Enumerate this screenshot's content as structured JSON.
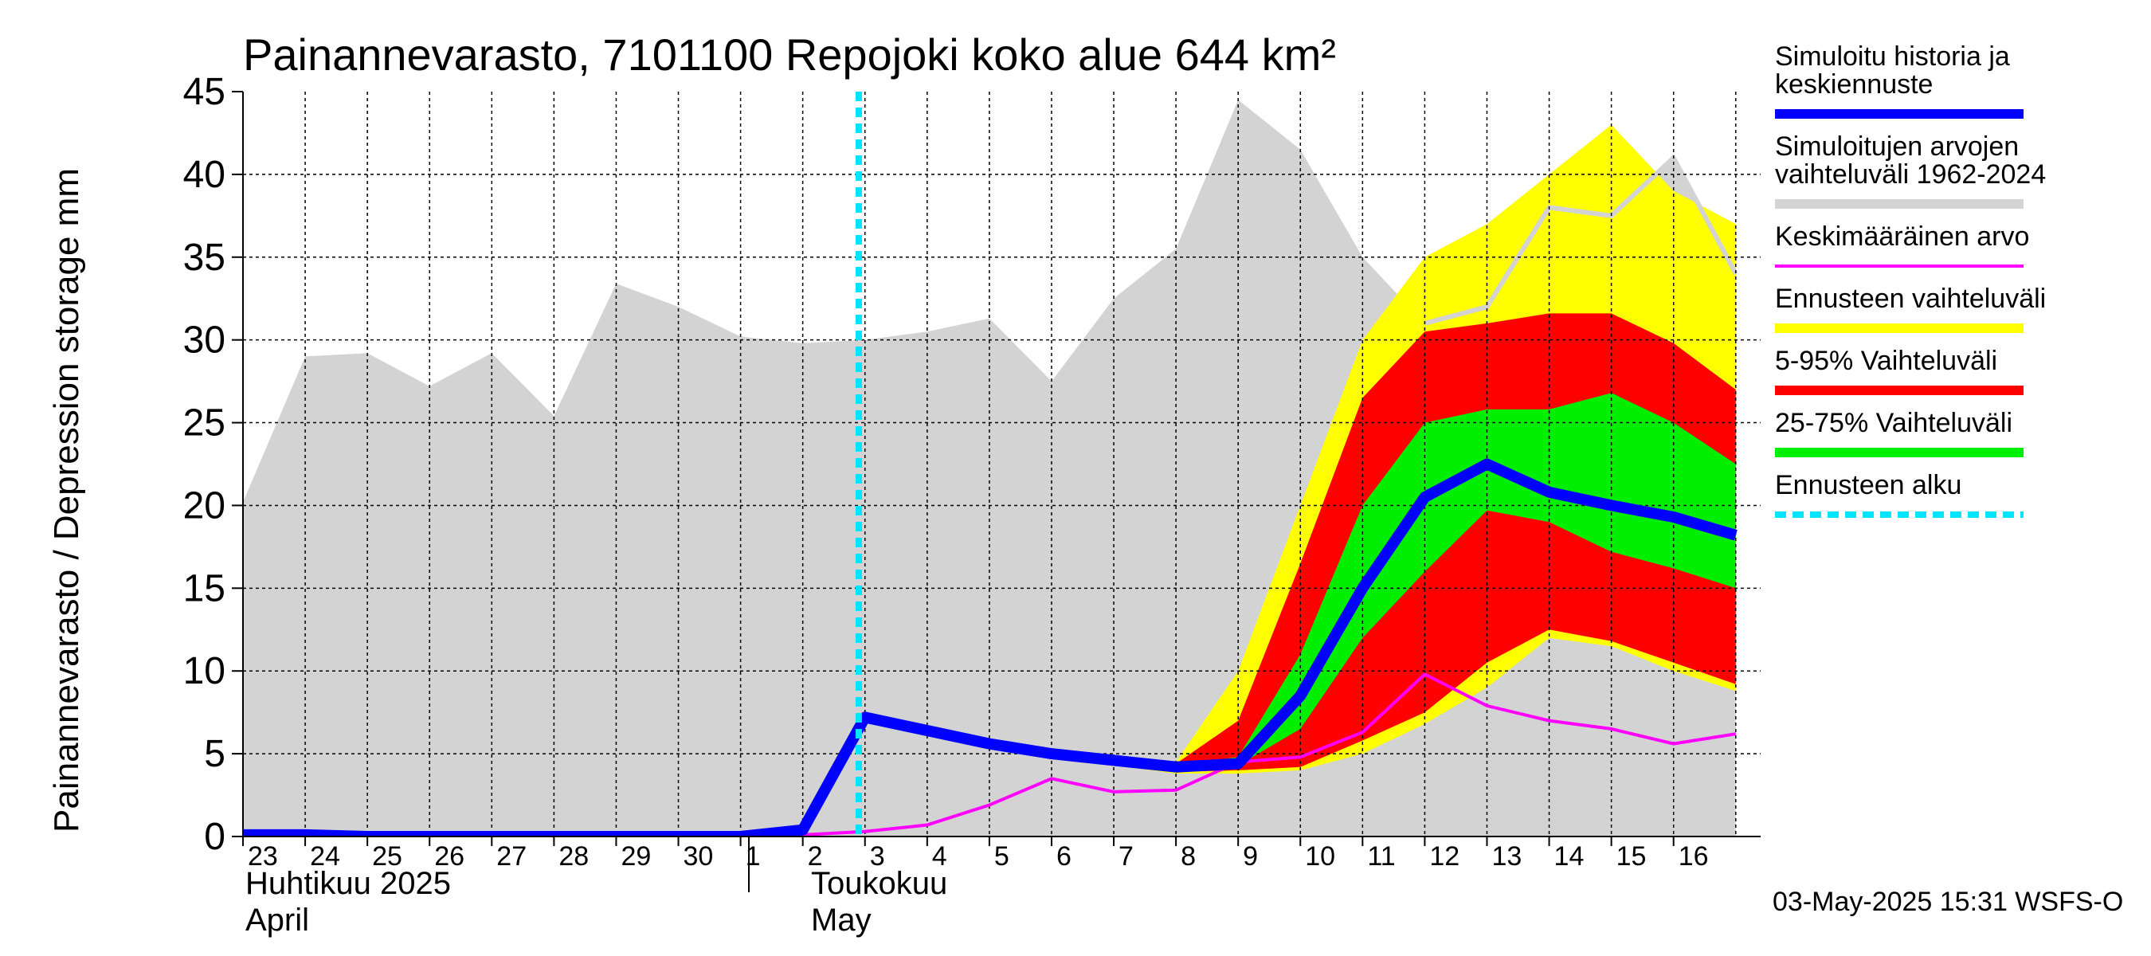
{
  "chart_data": {
    "type": "area",
    "title": "Painannevarasto, 7101100 Repojoki koko alue 644 km²",
    "ylabel": "Painannevarasto / Depression storage    mm",
    "ylim": [
      0,
      45
    ],
    "yticks": [
      0,
      5,
      10,
      15,
      20,
      25,
      30,
      35,
      40,
      45
    ],
    "x_tick_labels": [
      "23",
      "24",
      "25",
      "26",
      "27",
      "28",
      "29",
      "30",
      "1",
      "2",
      "3",
      "4",
      "5",
      "6",
      "7",
      "8",
      "9",
      "10",
      "11",
      "12",
      "13",
      "14",
      "15",
      "16"
    ],
    "month_labels": {
      "april_fi": "Huhtikuu  2025",
      "april_en": "April",
      "may_fi": "Toukokuu",
      "may_en": "May"
    },
    "footer": "03-May-2025 15:31 WSFS-O",
    "grid": true,
    "forecast_start_day": 9.9,
    "series": {
      "historical_range": {
        "days": [
          0,
          1,
          2,
          3,
          4,
          5,
          6,
          7,
          8,
          9,
          10,
          11,
          12,
          13,
          14,
          15,
          16,
          17,
          18,
          19,
          20,
          21,
          22,
          23,
          24
        ],
        "upper": [
          20.2,
          29.0,
          29.2,
          27.2,
          29.2,
          25.4,
          33.4,
          32.0,
          30.2,
          29.8,
          30.0,
          30.5,
          31.3,
          27.5,
          32.5,
          35.5,
          44.5,
          41.5,
          35.0,
          31.0,
          32.0,
          38.0,
          37.5,
          41.0,
          34.0
        ],
        "lower": [
          0,
          0,
          0,
          0,
          0,
          0,
          0,
          0,
          0,
          0,
          0,
          0,
          0,
          0,
          0,
          0,
          0,
          0,
          0,
          0,
          0,
          0,
          0,
          0,
          0
        ]
      },
      "forecast_range": {
        "days": [
          10,
          11,
          12,
          13,
          14,
          15,
          16,
          17,
          18,
          19,
          20,
          21,
          22,
          23,
          24
        ],
        "upper": [
          7.4,
          6.7,
          5.8,
          5.2,
          4.8,
          4.5,
          10.0,
          20.0,
          30.0,
          35.0,
          37.0,
          40.0,
          43.0,
          39.0,
          37.0
        ],
        "lower": [
          7.0,
          6.1,
          5.3,
          4.7,
          4.3,
          3.8,
          3.8,
          4.0,
          5.0,
          6.8,
          9.0,
          12.0,
          11.5,
          10.0,
          8.8
        ]
      },
      "range_5_95": {
        "days": [
          10,
          11,
          12,
          13,
          14,
          15,
          16,
          17,
          18,
          19,
          20,
          21,
          22,
          23,
          24
        ],
        "upper": [
          7.3,
          6.5,
          5.7,
          5.1,
          4.7,
          4.4,
          7.0,
          16.5,
          26.5,
          30.5,
          31.0,
          31.6,
          31.6,
          29.8,
          27.0
        ],
        "lower": [
          7.1,
          6.2,
          5.4,
          4.8,
          4.4,
          3.9,
          4.0,
          4.2,
          5.8,
          7.5,
          10.5,
          12.5,
          11.8,
          10.5,
          9.2
        ]
      },
      "range_25_75": {
        "days": [
          10,
          11,
          12,
          13,
          14,
          15,
          16,
          17,
          18,
          19,
          20,
          21,
          22,
          23,
          24
        ],
        "upper": [
          7.25,
          6.45,
          5.6,
          5.0,
          4.6,
          4.3,
          4.8,
          11.0,
          20.0,
          25.0,
          25.8,
          25.8,
          26.8,
          25.0,
          22.5
        ],
        "lower": [
          7.15,
          6.3,
          5.45,
          4.85,
          4.45,
          4.05,
          4.3,
          6.5,
          12.0,
          16.0,
          19.7,
          19.0,
          17.2,
          16.2,
          15.0
        ]
      },
      "median": {
        "name": "Simuloitu historia ja keskiennuste",
        "days": [
          0,
          1,
          2,
          3,
          4,
          5,
          6,
          7,
          8,
          9,
          10,
          11,
          12,
          13,
          14,
          15,
          16,
          17,
          18,
          19,
          20,
          21,
          22,
          23,
          24
        ],
        "values": [
          0.1,
          0.1,
          0.0,
          0.0,
          0.0,
          0.0,
          0.0,
          0.0,
          0.0,
          0.4,
          7.2,
          6.4,
          5.6,
          5.0,
          4.6,
          4.2,
          4.4,
          8.5,
          15.0,
          20.5,
          22.5,
          20.8,
          20.0,
          19.3,
          18.2
        ]
      },
      "mean": {
        "name": "Keskimääräinen arvo",
        "days": [
          0,
          1,
          2,
          3,
          4,
          5,
          6,
          7,
          8,
          9,
          10,
          11,
          12,
          13,
          14,
          15,
          16,
          17,
          18,
          19,
          20,
          21,
          22,
          23,
          24
        ],
        "values": [
          0.1,
          0.1,
          0.1,
          0.1,
          0.1,
          0.1,
          0.1,
          0.1,
          0.1,
          0.1,
          0.3,
          0.7,
          1.9,
          3.5,
          2.7,
          2.8,
          4.5,
          4.8,
          6.3,
          9.8,
          7.9,
          7.0,
          6.5,
          5.6,
          6.2
        ]
      }
    }
  },
  "legend": [
    {
      "label": "Simuloitu historia ja keskiennuste",
      "lines": [
        "Simuloitu historia ja",
        "keskiennuste"
      ],
      "color": "#0000ff",
      "style": "thick"
    },
    {
      "label": "Simuloitujen arvojen vaihteluväli 1962-2024",
      "lines": [
        "Simuloitujen arvojen",
        "vaihteluväli 1962-2024"
      ],
      "color": "#d3d3d3",
      "style": "band"
    },
    {
      "label": "Keskimääräinen arvo",
      "lines": [
        "Keskimääräinen arvo"
      ],
      "color": "#ff00ff",
      "style": "thin"
    },
    {
      "label": "Ennusteen vaihteluväli",
      "lines": [
        "Ennusteen vaihteluväli"
      ],
      "color": "#ffff00",
      "style": "band"
    },
    {
      "label": "5-95% Vaihteluväli",
      "lines": [
        "5-95% Vaihteluväli"
      ],
      "color": "#ff0000",
      "style": "band"
    },
    {
      "label": "25-75% Vaihteluväli",
      "lines": [
        "25-75% Vaihteluväli"
      ],
      "color": "#00ee00",
      "style": "band"
    },
    {
      "label": "Ennusteen alku",
      "lines": [
        "Ennusteen alku"
      ],
      "color": "#00e5ff",
      "style": "dashed"
    }
  ]
}
